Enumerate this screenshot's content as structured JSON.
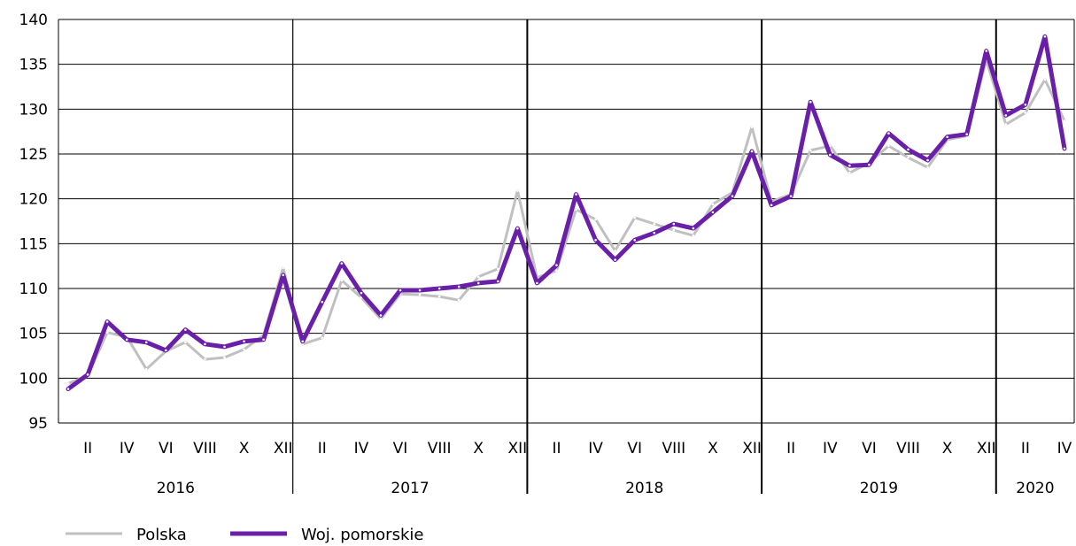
{
  "chart_data": {
    "type": "line",
    "title": "",
    "xlabel": "",
    "ylabel": "",
    "ylim": [
      95,
      140
    ],
    "yticks": [
      95,
      100,
      105,
      110,
      115,
      120,
      125,
      130,
      135,
      140
    ],
    "grid": "horizontal",
    "legend_position": "bottom-left",
    "x_tick_labels": [
      "II",
      "IV",
      "VI",
      "VIII",
      "X",
      "XII"
    ],
    "years": [
      {
        "label": "2016",
        "months": 12
      },
      {
        "label": "2017",
        "months": 12
      },
      {
        "label": "2018",
        "months": 12
      },
      {
        "label": "2019",
        "months": 12
      },
      {
        "label": "2020",
        "months": 4
      }
    ],
    "series": [
      {
        "name": "Polska",
        "color": "#c0c0c0",
        "values": [
          99.4,
          100.3,
          105.1,
          104.6,
          101.0,
          103.0,
          104.0,
          102.1,
          102.3,
          103.2,
          104.8,
          112.3,
          103.8,
          104.5,
          110.9,
          109.0,
          106.6,
          109.4,
          109.3,
          109.1,
          108.7,
          111.3,
          112.2,
          120.9,
          111.2,
          112.0,
          118.8,
          117.7,
          114.2,
          117.9,
          117.2,
          116.5,
          115.9,
          119.4,
          120.7,
          128.0,
          119.7,
          120.5,
          125.4,
          125.9,
          122.9,
          124.0,
          125.9,
          124.6,
          123.5,
          126.6,
          127.0,
          135.5,
          128.3,
          129.6,
          133.3,
          128.7
        ]
      },
      {
        "name": "Woj. pomorskie",
        "color": "#6a1fa8",
        "values": [
          98.8,
          100.4,
          106.3,
          104.3,
          104.0,
          103.1,
          105.4,
          103.8,
          103.5,
          104.1,
          104.3,
          111.5,
          104.1,
          108.5,
          112.8,
          109.5,
          107.0,
          109.8,
          109.8,
          110.0,
          110.2,
          110.6,
          110.8,
          116.7,
          110.6,
          112.6,
          120.5,
          115.4,
          113.2,
          115.4,
          116.2,
          117.2,
          116.7,
          118.5,
          120.3,
          125.3,
          119.3,
          120.3,
          130.8,
          124.9,
          123.7,
          123.8,
          127.3,
          125.5,
          124.3,
          126.9,
          127.2,
          136.5,
          129.3,
          130.5,
          138.1,
          125.6
        ]
      }
    ]
  }
}
